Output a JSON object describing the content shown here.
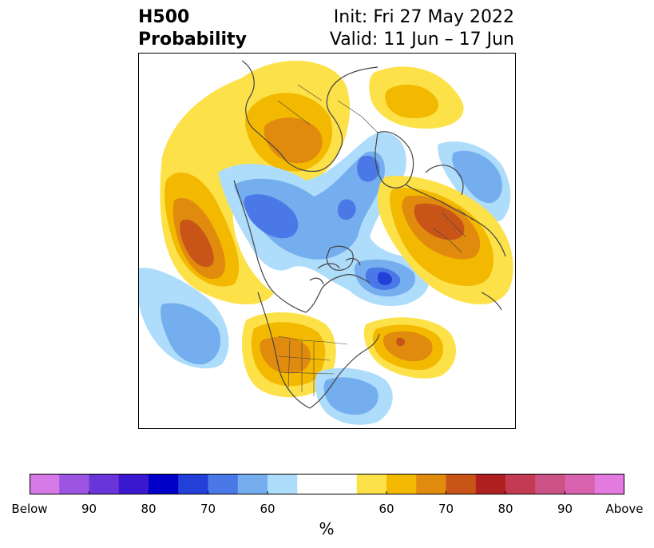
{
  "header": {
    "title_line1": "H500",
    "title_line2": "Probability",
    "init": "Init: Fri 27 May 2022",
    "valid": "Valid: 11 Jun – 17 Jun"
  },
  "colorbar": {
    "colors": [
      "#d67ae8",
      "#9b55e0",
      "#6a35d8",
      "#3a18d0",
      "#0000c8",
      "#2240d8",
      "#4a78e6",
      "#74aeef",
      "#aedcfb",
      "#ffffff",
      "#ffffff",
      "#fde148",
      "#f3b800",
      "#e08a0e",
      "#c95418",
      "#b02020",
      "#c43a52",
      "#cc5285",
      "#d862ad",
      "#e27ae0"
    ],
    "tick_labels": [
      "Below",
      "90",
      "80",
      "70",
      "60",
      "60",
      "70",
      "80",
      "90",
      "Above"
    ],
    "units": "%"
  },
  "palette": {
    "y1": "#fde148",
    "y2": "#f3b800",
    "o1": "#e08a0e",
    "o2": "#c95418",
    "b0": "#aedcfb",
    "b1": "#74aeef",
    "b2": "#4a78e6",
    "b3": "#2240d8",
    "coast": "#444444"
  }
}
